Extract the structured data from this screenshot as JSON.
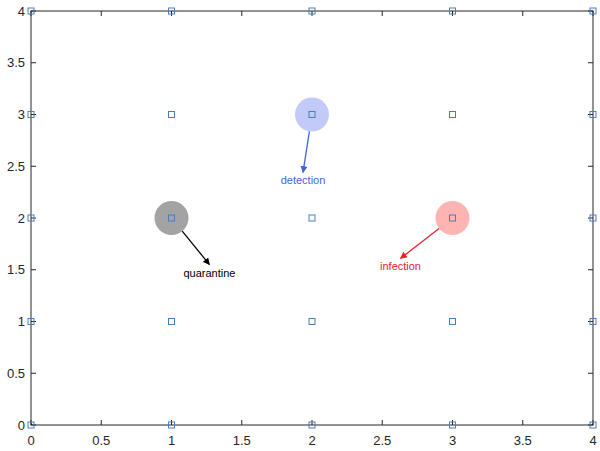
{
  "chart_data": {
    "type": "scatter",
    "xlim": [
      0,
      4
    ],
    "ylim": [
      0,
      4
    ],
    "xticks": [
      0,
      0.5,
      1,
      1.5,
      2,
      2.5,
      3,
      3.5,
      4
    ],
    "yticks": [
      0,
      0.5,
      1,
      1.5,
      2,
      2.5,
      3,
      3.5,
      4
    ],
    "grid": false,
    "series": [
      {
        "marker": "square",
        "color": "#4a7ebb",
        "x": [
          0,
          1,
          2,
          3,
          4,
          0,
          1,
          2,
          3,
          4,
          0,
          1,
          2,
          3,
          4,
          0,
          1,
          2,
          3,
          4,
          0,
          1,
          2,
          3,
          4
        ],
        "values": [
          0,
          0,
          0,
          0,
          0,
          1,
          1,
          1,
          1,
          1,
          2,
          2,
          2,
          2,
          2,
          3,
          3,
          3,
          3,
          3,
          4,
          4,
          4,
          4,
          4
        ]
      },
      {
        "marker": "circle",
        "colors": [
          "#a3a3a3",
          "#c2cbf8",
          "#ffb4b4"
        ],
        "x": [
          1,
          2,
          3
        ],
        "values": [
          2,
          3,
          2
        ]
      }
    ],
    "annotations": [
      {
        "text": "detection",
        "color": "#3f66e0",
        "point": 1,
        "text_x": 1.936,
        "text_y": 2.44
      },
      {
        "text": "quarantine",
        "color": "#000000",
        "point": 0,
        "text_x": 1.27,
        "text_y": 1.55
      },
      {
        "text": "infection",
        "color": "#e8262a",
        "point": 2,
        "text_x": 2.63,
        "text_y": 1.61
      }
    ]
  }
}
